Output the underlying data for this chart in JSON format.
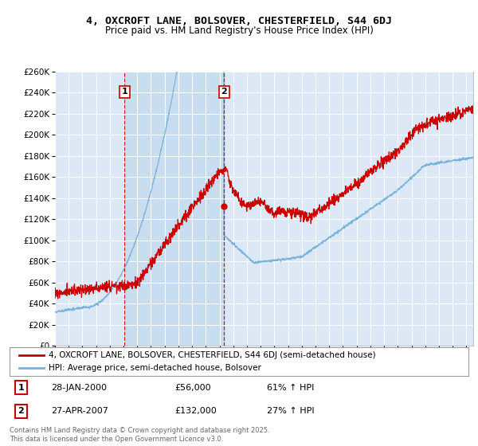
{
  "title": "4, OXCROFT LANE, BOLSOVER, CHESTERFIELD, S44 6DJ",
  "subtitle": "Price paid vs. HM Land Registry's House Price Index (HPI)",
  "legend_line1": "4, OXCROFT LANE, BOLSOVER, CHESTERFIELD, S44 6DJ (semi-detached house)",
  "legend_line2": "HPI: Average price, semi-detached house, Bolsover",
  "annotation1_label": "1",
  "annotation1_date": "28-JAN-2000",
  "annotation1_price": "£56,000",
  "annotation1_hpi": "61% ↑ HPI",
  "annotation2_label": "2",
  "annotation2_date": "27-APR-2007",
  "annotation2_price": "£132,000",
  "annotation2_hpi": "27% ↑ HPI",
  "footer": "Contains HM Land Registry data © Crown copyright and database right 2025.\nThis data is licensed under the Open Government Licence v3.0.",
  "price_color": "#cc0000",
  "hpi_color": "#7ab3d9",
  "vline_color": "#cc0000",
  "annotation_box_color": "#cc0000",
  "background_color": "#dce8f5",
  "shaded_color": "#c8ddf0",
  "ylim": [
    0,
    260000
  ],
  "ytick_step": 20000,
  "sale1_x": 2000.07,
  "sale1_y": 56000,
  "sale2_x": 2007.33,
  "sale2_y": 132000,
  "xmin": 1995,
  "xmax": 2025.5
}
